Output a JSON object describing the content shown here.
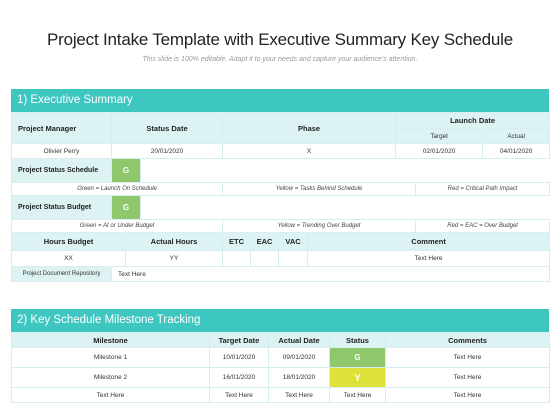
{
  "title": "Project Intake Template with Executive Summary Key Schedule",
  "subtitle": "This slide is 100% editable. Adapt it to your needs and capture your audience's attention.",
  "executive": {
    "heading": "1) Executive Summary",
    "headers": {
      "project_manager": "Project Manager",
      "status_date": "Status Date",
      "phase": "Phase",
      "launch_date": "Launch Date",
      "target": "Target",
      "actual": "Actual"
    },
    "row": {
      "project_manager": "Olivier Perry",
      "status_date": "20/01/2020",
      "phase": "X",
      "target": "02/01/2020",
      "actual": "04/01/2020"
    },
    "schedule": {
      "label": "Project Status Schedule",
      "status": "G",
      "legend_green": "Green = Launch On Schedule",
      "legend_yellow": "Yellow = Tasks Behind Schedule",
      "legend_red": "Red = Critical Path Impact"
    },
    "budget": {
      "label": "Project Status Budget",
      "status": "G",
      "legend_green": "Green = At or Under Budget",
      "legend_yellow": "Yellow = Trending Over Budget",
      "legend_red": "Red = EAC = Over Budget"
    },
    "hours_headers": {
      "hours_budget": "Hours Budget",
      "actual_hours": "Actual Hours",
      "etc": "ETC",
      "eac": "EAC",
      "vac": "VAC",
      "comment": "Comment"
    },
    "hours_row": {
      "hours_budget": "XX",
      "actual_hours": "YY",
      "comment": "Text Here"
    },
    "repository": {
      "label": "Project Document Repository",
      "value": "Text Here"
    }
  },
  "milestones": {
    "heading": "2) Key Schedule Milestone Tracking",
    "headers": {
      "milestone": "Milestone",
      "target_date": "Target Date",
      "actual_date": "Actual Date",
      "status": "Status",
      "comments": "Comments"
    },
    "rows": [
      {
        "milestone": "Milestone 1",
        "target_date": "10/01/2020",
        "actual_date": "09/01/2020",
        "status": "G",
        "status_color": "#8fc76d",
        "comments": "Text Here"
      },
      {
        "milestone": "Milestone 2",
        "target_date": "16/01/2020",
        "actual_date": "18/01/2020",
        "status": "Y",
        "status_color": "#dde23a",
        "comments": "Text Here"
      },
      {
        "milestone": "Text Here",
        "target_date": "Text Here",
        "actual_date": "Text Here",
        "status": "Text Here",
        "status_color": "#ffffff",
        "comments": "Text Here"
      }
    ]
  },
  "colors": {
    "accent": "#3ec6c1",
    "header_fill": "#ddf3f3",
    "green": "#8fc76d",
    "yellow": "#dde23a"
  }
}
